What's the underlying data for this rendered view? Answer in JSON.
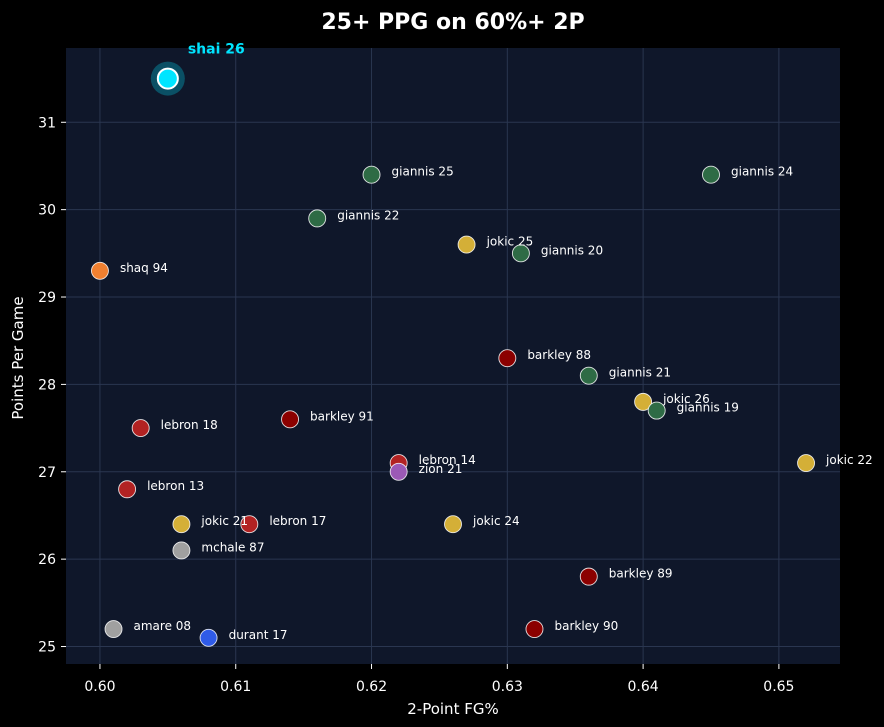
{
  "chart_data": {
    "type": "scatter",
    "title": "25+ PPG on 60%+ 2P",
    "xlabel": "2-Point FG%",
    "ylabel": "Points Per Game",
    "xlim": [
      0.5975,
      0.6545
    ],
    "ylim": [
      24.8,
      31.85
    ],
    "x_ticks": [
      0.6,
      0.61,
      0.62,
      0.63,
      0.64,
      0.65
    ],
    "x_tick_labels": [
      "0.60",
      "0.61",
      "0.62",
      "0.63",
      "0.64",
      "0.65"
    ],
    "y_ticks": [
      25,
      26,
      27,
      28,
      29,
      30,
      31
    ],
    "y_tick_labels": [
      "25",
      "26",
      "27",
      "28",
      "29",
      "30",
      "31"
    ],
    "grid": true,
    "colors": {
      "background": "#000000",
      "plot_area": "#0f172a",
      "grid": "#2a3650",
      "text": "#ffffff",
      "highlight": "#00e5ff",
      "giannis": "#2e6b45",
      "jokic": "#d4af37",
      "barkley": "#8b0000",
      "lebron": "#b22222",
      "shaq": "#f08030",
      "zion": "#9b59b6",
      "mchale": "#a0a0a0",
      "amare": "#a0a0a0",
      "durant": "#2f5be8"
    },
    "highlight": {
      "label": "shai 26",
      "x": 0.605,
      "y": 31.5,
      "group": "shai"
    },
    "points": [
      {
        "label": "giannis 25",
        "x": 0.62,
        "y": 30.4,
        "group": "giannis"
      },
      {
        "label": "giannis 24",
        "x": 0.645,
        "y": 30.4,
        "group": "giannis"
      },
      {
        "label": "giannis 22",
        "x": 0.616,
        "y": 29.9,
        "group": "giannis"
      },
      {
        "label": "jokic 25",
        "x": 0.627,
        "y": 29.6,
        "group": "jokic"
      },
      {
        "label": "giannis 20",
        "x": 0.631,
        "y": 29.5,
        "group": "giannis"
      },
      {
        "label": "shaq 94",
        "x": 0.6,
        "y": 29.3,
        "group": "shaq"
      },
      {
        "label": "barkley 88",
        "x": 0.63,
        "y": 28.3,
        "group": "barkley"
      },
      {
        "label": "giannis 21",
        "x": 0.636,
        "y": 28.1,
        "group": "giannis"
      },
      {
        "label": "jokic 26",
        "x": 0.64,
        "y": 27.8,
        "group": "jokic"
      },
      {
        "label": "giannis 19",
        "x": 0.641,
        "y": 27.7,
        "group": "giannis"
      },
      {
        "label": "barkley 91",
        "x": 0.614,
        "y": 27.6,
        "group": "barkley"
      },
      {
        "label": "lebron 18",
        "x": 0.603,
        "y": 27.5,
        "group": "lebron"
      },
      {
        "label": "lebron 14",
        "x": 0.622,
        "y": 27.1,
        "group": "lebron"
      },
      {
        "label": "zion 21",
        "x": 0.622,
        "y": 27.0,
        "group": "zion"
      },
      {
        "label": "jokic 22",
        "x": 0.652,
        "y": 27.1,
        "group": "jokic"
      },
      {
        "label": "lebron 13",
        "x": 0.602,
        "y": 26.8,
        "group": "lebron"
      },
      {
        "label": "jokic 21",
        "x": 0.606,
        "y": 26.4,
        "group": "jokic"
      },
      {
        "label": "lebron 17",
        "x": 0.611,
        "y": 26.4,
        "group": "lebron"
      },
      {
        "label": "jokic 24",
        "x": 0.626,
        "y": 26.4,
        "group": "jokic"
      },
      {
        "label": "mchale 87",
        "x": 0.606,
        "y": 26.1,
        "group": "mchale"
      },
      {
        "label": "barkley 89",
        "x": 0.636,
        "y": 25.8,
        "group": "barkley"
      },
      {
        "label": "amare 08",
        "x": 0.601,
        "y": 25.2,
        "group": "amare"
      },
      {
        "label": "barkley 90",
        "x": 0.632,
        "y": 25.2,
        "group": "barkley"
      },
      {
        "label": "durant 17",
        "x": 0.608,
        "y": 25.1,
        "group": "durant"
      }
    ]
  }
}
